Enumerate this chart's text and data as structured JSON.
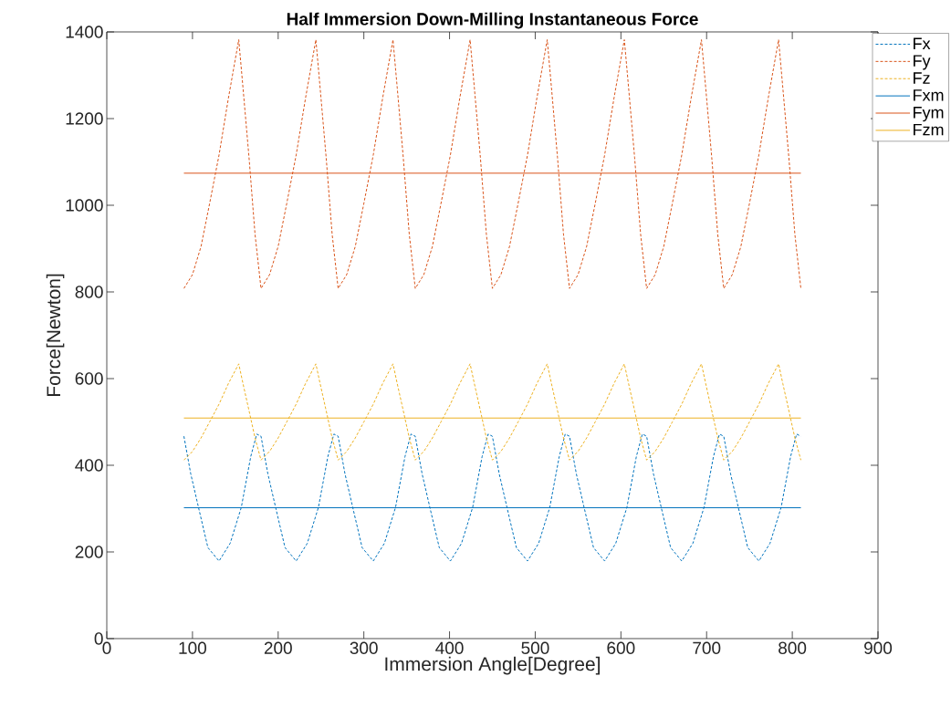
{
  "chart_data": {
    "type": "line",
    "title": "Half Immersion Down-Milling Instantaneous Force",
    "xlabel": "Immersion Angle[Degree]",
    "ylabel": "Force[Newton]",
    "xlim": [
      0,
      900
    ],
    "ylim": [
      0,
      1400
    ],
    "xticks": [
      0,
      100,
      200,
      300,
      400,
      500,
      600,
      700,
      800,
      900
    ],
    "yticks": [
      0,
      200,
      400,
      600,
      800,
      1000,
      1200,
      1400
    ],
    "legend": "top right",
    "grid": false,
    "marker": "none",
    "series": [
      {
        "name": "Fx",
        "color": "#0072bd",
        "line_style": "dashed",
        "x": [
          90,
          98,
          107,
          118,
          131,
          144,
          157,
          168,
          175,
          180,
          188,
          197,
          208,
          221,
          234,
          247,
          258,
          265,
          270,
          278,
          287,
          298,
          311,
          324,
          337,
          348,
          355,
          360,
          368,
          377,
          388,
          401,
          414,
          427,
          438,
          445,
          450,
          458,
          467,
          478,
          491,
          504,
          517,
          528,
          535,
          540,
          548,
          557,
          568,
          581,
          594,
          607,
          618,
          625,
          630,
          638,
          647,
          658,
          671,
          684,
          697,
          708,
          715,
          720,
          728,
          737,
          748,
          761,
          774,
          787,
          798,
          805,
          810
        ],
        "values": [
          467,
          380,
          303,
          210,
          179,
          220,
          303,
          420,
          472,
          467,
          380,
          303,
          210,
          179,
          220,
          303,
          420,
          472,
          467,
          380,
          303,
          210,
          179,
          220,
          303,
          420,
          472,
          467,
          380,
          303,
          210,
          179,
          220,
          303,
          420,
          472,
          467,
          380,
          303,
          210,
          179,
          220,
          303,
          420,
          472,
          467,
          380,
          303,
          210,
          179,
          220,
          303,
          420,
          472,
          467,
          380,
          303,
          210,
          179,
          220,
          303,
          420,
          472,
          467,
          380,
          303,
          210,
          179,
          220,
          303,
          420,
          472,
          467
        ]
      },
      {
        "name": "Fy",
        "color": "#d95319",
        "line_style": "dashed",
        "x": [
          90,
          100,
          110,
          120,
          131,
          142,
          154,
          159,
          166,
          173,
          180,
          190,
          200,
          210,
          221,
          232,
          244,
          249,
          256,
          263,
          270,
          280,
          290,
          300,
          311,
          322,
          334,
          339,
          346,
          353,
          360,
          370,
          380,
          390,
          401,
          412,
          424,
          429,
          436,
          443,
          450,
          460,
          470,
          480,
          491,
          502,
          514,
          519,
          526,
          533,
          540,
          550,
          560,
          570,
          581,
          592,
          604,
          609,
          616,
          623,
          630,
          640,
          650,
          660,
          671,
          682,
          694,
          699,
          706,
          713,
          720,
          730,
          740,
          750,
          761,
          772,
          784,
          789,
          796,
          803,
          810
        ],
        "values": [
          808,
          840,
          905,
          1004,
          1116,
          1248,
          1382,
          1270,
          1110,
          933,
          808,
          840,
          905,
          1004,
          1116,
          1248,
          1382,
          1270,
          1110,
          933,
          808,
          840,
          905,
          1004,
          1116,
          1248,
          1382,
          1270,
          1110,
          933,
          808,
          840,
          905,
          1004,
          1116,
          1248,
          1382,
          1270,
          1110,
          933,
          808,
          840,
          905,
          1004,
          1116,
          1248,
          1382,
          1270,
          1110,
          933,
          808,
          840,
          905,
          1004,
          1116,
          1248,
          1382,
          1270,
          1110,
          933,
          808,
          840,
          905,
          1004,
          1116,
          1248,
          1382,
          1270,
          1110,
          933,
          808,
          840,
          905,
          1004,
          1116,
          1248,
          1382,
          1270,
          1110,
          933,
          808
        ]
      },
      {
        "name": "Fz",
        "color": "#edb120",
        "line_style": "dashed",
        "x": [
          90,
          100,
          110,
          120,
          131,
          142,
          154,
          159,
          166,
          173,
          180,
          190,
          200,
          210,
          221,
          232,
          244,
          249,
          256,
          263,
          270,
          280,
          290,
          300,
          311,
          322,
          334,
          339,
          346,
          353,
          360,
          370,
          380,
          390,
          401,
          412,
          424,
          429,
          436,
          443,
          450,
          460,
          470,
          480,
          491,
          502,
          514,
          519,
          526,
          533,
          540,
          550,
          560,
          570,
          581,
          592,
          604,
          609,
          616,
          623,
          630,
          640,
          650,
          660,
          671,
          682,
          694,
          699,
          706,
          713,
          720,
          730,
          740,
          750,
          761,
          772,
          784,
          789,
          796,
          803,
          810
        ],
        "values": [
          412,
          432,
          463,
          500,
          541,
          589,
          634,
          588,
          526,
          463,
          412,
          432,
          463,
          500,
          541,
          589,
          634,
          588,
          526,
          463,
          412,
          432,
          463,
          500,
          541,
          589,
          634,
          588,
          526,
          463,
          412,
          432,
          463,
          500,
          541,
          589,
          634,
          588,
          526,
          463,
          412,
          432,
          463,
          500,
          541,
          589,
          634,
          588,
          526,
          463,
          412,
          432,
          463,
          500,
          541,
          589,
          634,
          588,
          526,
          463,
          412,
          432,
          463,
          500,
          541,
          589,
          634,
          588,
          526,
          463,
          412,
          432,
          463,
          500,
          541,
          589,
          634,
          588,
          526,
          463,
          412
        ]
      },
      {
        "name": "Fxm",
        "color": "#0072bd",
        "line_style": "solid",
        "x": [
          90,
          810
        ],
        "values": [
          302,
          302
        ]
      },
      {
        "name": "Fym",
        "color": "#d95319",
        "line_style": "solid",
        "x": [
          90,
          810
        ],
        "values": [
          1074,
          1074
        ]
      },
      {
        "name": "Fzm",
        "color": "#edb120",
        "line_style": "solid",
        "x": [
          90,
          810
        ],
        "values": [
          509,
          509
        ]
      }
    ]
  }
}
